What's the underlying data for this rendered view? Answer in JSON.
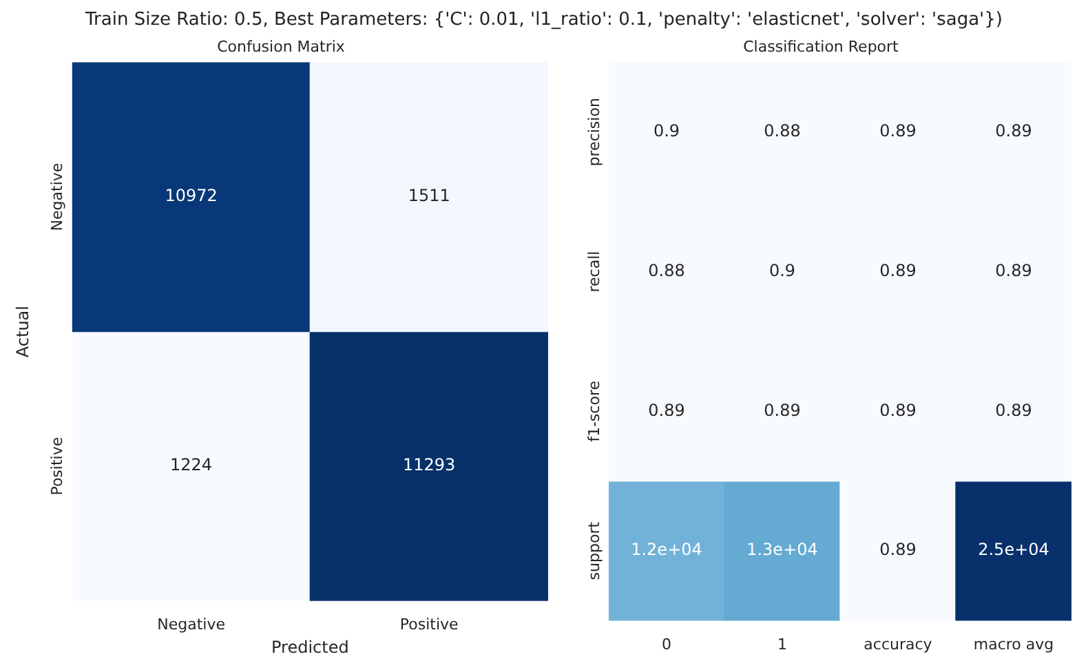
{
  "chart_data": [
    {
      "type": "heatmap",
      "title": "Confusion Matrix",
      "xlabel": "Predicted",
      "ylabel": "Actual",
      "annotations": [
        "Train Size Ratio: 0.5, Best Parameters: {'C': 0.01, 'l1_ratio': 0.1, 'penalty': 'elasticnet', 'solver': 'saga'})"
      ],
      "categories": [
        "Negative",
        "Positive"
      ],
      "y_categories": [
        "Negative",
        "Positive"
      ],
      "data_labels": true,
      "cells": [
        [
          10972,
          1511
        ],
        [
          1224,
          11293
        ]
      ]
    },
    {
      "type": "heatmap",
      "title": "Classification Report",
      "categories": [
        "0",
        "1",
        "accuracy",
        "macro avg"
      ],
      "data_labels": true,
      "y_categories": [
        "precision",
        "recall",
        "f1-score",
        "support"
      ],
      "cells": [
        [
          0.9,
          0.88,
          0.89,
          0.89
        ],
        [
          0.88,
          0.9,
          0.89,
          0.89
        ],
        [
          0.89,
          0.89,
          0.89,
          0.89
        ],
        [
          12000,
          13000,
          0.89,
          25000
        ]
      ],
      "cell_labels": [
        [
          "0.9",
          "0.88",
          "0.89",
          "0.89"
        ],
        [
          "0.88",
          "0.9",
          "0.89",
          "0.89"
        ],
        [
          "0.89",
          "0.89",
          "0.89",
          "0.89"
        ],
        [
          "1.2e+04",
          "1.3e+04",
          "0.89",
          "2.5e+04"
        ]
      ]
    }
  ]
}
